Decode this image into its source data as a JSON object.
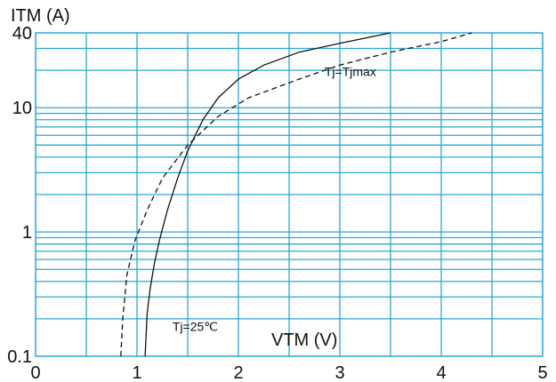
{
  "chart_data": {
    "type": "line",
    "title": "",
    "ylabel": "ITM (A)",
    "xlabel": "VTM (V)",
    "xlim": [
      0,
      5
    ],
    "ylim": [
      0.1,
      40
    ],
    "yscale": "log",
    "grid": true,
    "x_ticks": [
      "0",
      "1",
      "2",
      "3",
      "4",
      "5"
    ],
    "y_ticks": [
      {
        "value": 40,
        "label": "40"
      },
      {
        "value": 10,
        "label": "10"
      },
      {
        "value": 1,
        "label": "1"
      },
      {
        "value": 0.1,
        "label": "0.1"
      }
    ],
    "series": [
      {
        "name": "Tj=25℃",
        "style": "solid",
        "color": "#111111",
        "points": [
          [
            1.08,
            0.1
          ],
          [
            1.09,
            0.15
          ],
          [
            1.1,
            0.22
          ],
          [
            1.13,
            0.35
          ],
          [
            1.17,
            0.55
          ],
          [
            1.22,
            0.85
          ],
          [
            1.3,
            1.5
          ],
          [
            1.4,
            2.7
          ],
          [
            1.5,
            4.5
          ],
          [
            1.65,
            8
          ],
          [
            1.8,
            12
          ],
          [
            2.0,
            17
          ],
          [
            2.25,
            22
          ],
          [
            2.6,
            28
          ],
          [
            3.0,
            33
          ],
          [
            3.5,
            40
          ]
        ]
      },
      {
        "name": "Tj=Tjmax",
        "style": "dashed",
        "color": "#111111",
        "points": [
          [
            0.84,
            0.1
          ],
          [
            0.86,
            0.2
          ],
          [
            0.9,
            0.45
          ],
          [
            0.98,
            0.85
          ],
          [
            1.1,
            1.5
          ],
          [
            1.25,
            2.7
          ],
          [
            1.5,
            5
          ],
          [
            1.8,
            8.5
          ],
          [
            2.1,
            12
          ],
          [
            2.6,
            17
          ],
          [
            3.0,
            22
          ],
          [
            3.5,
            28
          ],
          [
            4.0,
            34
          ],
          [
            4.3,
            40
          ]
        ]
      }
    ],
    "annotations": [
      {
        "text": "Tj=Tjmax",
        "x": 2.85,
        "y": 18
      },
      {
        "text": "Tj=25℃",
        "x": 1.35,
        "y": 0.16
      }
    ]
  }
}
